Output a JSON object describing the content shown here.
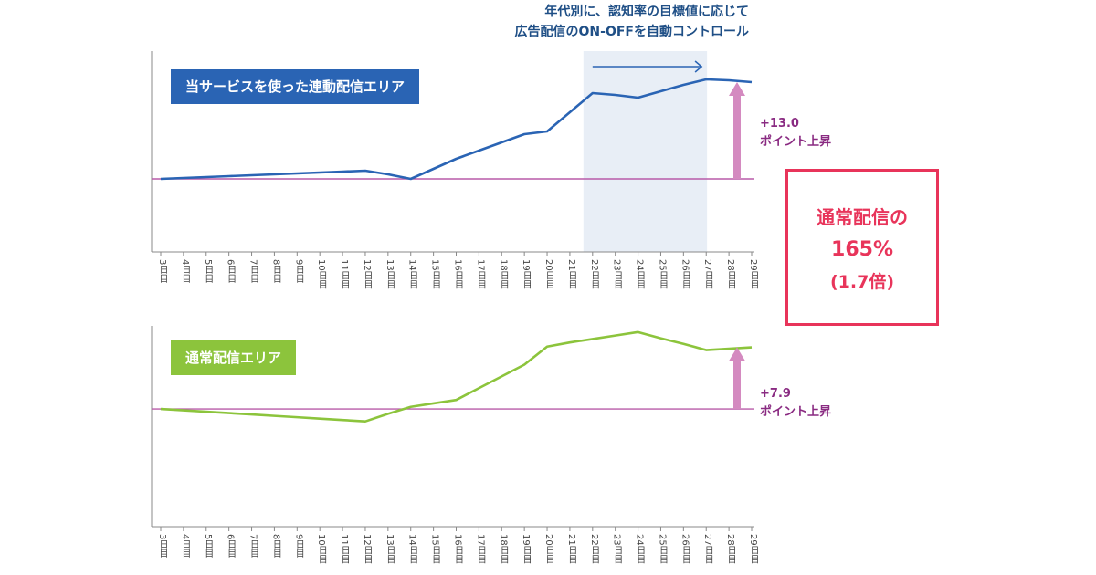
{
  "annotation": {
    "line1": "年代別に、認知率の目標値に応じて",
    "line2": "広告配信のON-OFFを自動コントロール"
  },
  "result": {
    "line1": "通常配信の",
    "line2": "165%",
    "line3": "(1.7倍)"
  },
  "colors": {
    "linked": "#2a64b4",
    "normal": "#8cc43c",
    "baseline": "#b85aa8",
    "arrow": "#d48ac0",
    "highlight": "#e8eef6",
    "result": "#e8345a"
  },
  "chart_data": [
    {
      "type": "line",
      "title": "当サービスを使った連動配信エリア",
      "x": [
        "3日目",
        "4日目",
        "5日目",
        "6日目",
        "7日目",
        "8日目",
        "9日目",
        "10日目",
        "11日目",
        "12日目",
        "13日目",
        "14日目",
        "15日目",
        "16日目",
        "17日目",
        "18日目",
        "19日目",
        "20日目",
        "21日目",
        "22日目",
        "23日目",
        "24日目",
        "25日目",
        "26日目",
        "27日目",
        "28日目",
        "29日目"
      ],
      "series": [
        {
          "color": "#2a64b4",
          "values": [
            0.0,
            0.1,
            0.2,
            0.3,
            0.4,
            0.5,
            0.6,
            0.7,
            0.8,
            0.9,
            0.5,
            0.0,
            1.1,
            2.2,
            3.1,
            4.0,
            4.9,
            5.2,
            7.3,
            9.4,
            9.2,
            8.9,
            9.6,
            10.3,
            10.9,
            10.8,
            10.6
          ]
        }
      ],
      "baseline": 0,
      "ylim": [
        -8,
        14
      ],
      "highlight_range": [
        "22日目",
        "28日目"
      ],
      "gain": {
        "value": "+13.0",
        "label": "ポイント上昇"
      }
    },
    {
      "type": "line",
      "title": "通常配信エリア",
      "x": [
        "3日目",
        "4日目",
        "5日目",
        "6日目",
        "7日目",
        "8日目",
        "9日目",
        "10日目",
        "11日目",
        "12日目",
        "13日目",
        "14日目",
        "15日目",
        "16日目",
        "17日目",
        "18日目",
        "19日目",
        "20日目",
        "21日目",
        "22日目",
        "23日目",
        "24日目",
        "25日目",
        "26日目",
        "27日目",
        "28日目",
        "29日目"
      ],
      "series": [
        {
          "color": "#8cc43c",
          "values": [
            0.0,
            -0.2,
            -0.4,
            -0.6,
            -0.8,
            -1.0,
            -1.2,
            -1.4,
            -1.6,
            -1.8,
            -0.7,
            0.3,
            0.8,
            1.3,
            3.0,
            4.7,
            6.4,
            9.0,
            9.6,
            10.1,
            10.6,
            11.1,
            10.2,
            9.4,
            8.5,
            8.7,
            8.9
          ]
        }
      ],
      "baseline": 0,
      "ylim": [
        -17,
        12
      ],
      "gain": {
        "value": "+7.9",
        "label": "ポイント上昇"
      }
    }
  ]
}
